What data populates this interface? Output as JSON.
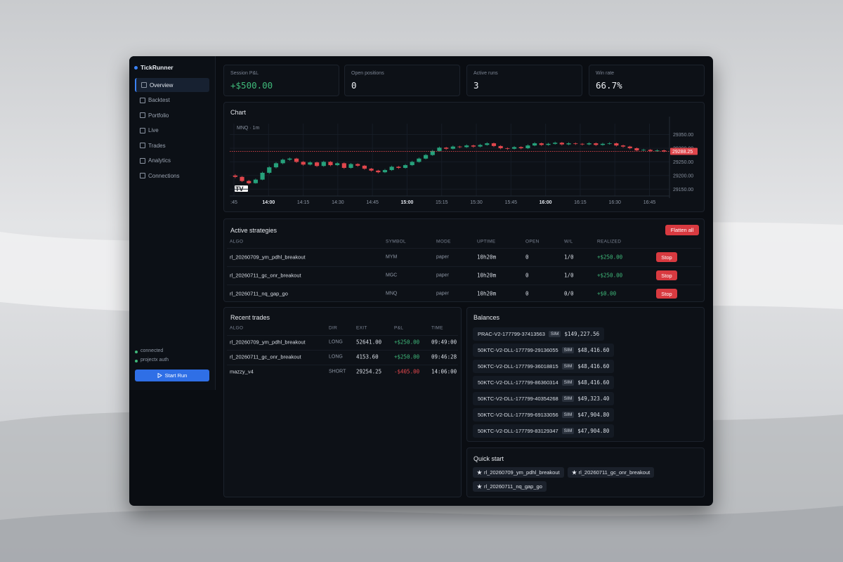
{
  "sidebar": {
    "brand": "TickRunner",
    "nav": [
      "Overview",
      "Backtest",
      "Portfolio",
      "Live",
      "Trades",
      "Analytics",
      "Connections"
    ],
    "status": [
      "connected",
      "projectx auth"
    ],
    "button": "Start Run"
  },
  "stats": [
    {
      "label": "Session P&L",
      "value": "+$500.00"
    },
    {
      "label": "Open positions",
      "value": "0"
    },
    {
      "label": "Active runs",
      "value": "3"
    },
    {
      "label": "Win rate",
      "value": "66.7%"
    }
  ],
  "chart": {
    "type": "candlestick",
    "title": "Chart",
    "label": "MNQ · 1m",
    "candles": [
      [
        29200,
        29205,
        29190,
        29195
      ],
      [
        29195,
        29198,
        29176,
        29180
      ],
      [
        29180,
        29184,
        29168,
        29172
      ],
      [
        29172,
        29189,
        29170,
        29185
      ],
      [
        29185,
        29214,
        29183,
        29210
      ],
      [
        29210,
        29234,
        29206,
        29230
      ],
      [
        29230,
        29249,
        29226,
        29245
      ],
      [
        29245,
        29262,
        29241,
        29258
      ],
      [
        29258,
        29266,
        29254,
        29262
      ],
      [
        29262,
        29265,
        29246,
        29250
      ],
      [
        29250,
        29253,
        29236,
        29240
      ],
      [
        29240,
        29252,
        29237,
        29248
      ],
      [
        29248,
        29251,
        29231,
        29235
      ],
      [
        29235,
        29254,
        29232,
        29250
      ],
      [
        29250,
        29253,
        29234,
        29238
      ],
      [
        29238,
        29249,
        29235,
        29245
      ],
      [
        29245,
        29248,
        29224,
        29228
      ],
      [
        29228,
        29246,
        29225,
        29242
      ],
      [
        29242,
        29245,
        29232,
        29236
      ],
      [
        29236,
        29239,
        29221,
        29225
      ],
      [
        29225,
        29228,
        29214,
        29218
      ],
      [
        29218,
        29221,
        29208,
        29212
      ],
      [
        29212,
        29224,
        29209,
        29220
      ],
      [
        29220,
        29236,
        29217,
        29232
      ],
      [
        29232,
        29235,
        29224,
        29228
      ],
      [
        29228,
        29242,
        29225,
        29238
      ],
      [
        29238,
        29254,
        29235,
        29250
      ],
      [
        29250,
        29266,
        29247,
        29262
      ],
      [
        29262,
        29279,
        29259,
        29275
      ],
      [
        29275,
        29294,
        29272,
        29290
      ],
      [
        29290,
        29306,
        29287,
        29302
      ],
      [
        29302,
        29305,
        29294,
        29298
      ],
      [
        29298,
        29310,
        29295,
        29306
      ],
      [
        29306,
        29309,
        29300,
        29304
      ],
      [
        29304,
        29314,
        29301,
        29310
      ],
      [
        29310,
        29313,
        29302,
        29306
      ],
      [
        29306,
        29316,
        29303,
        29312
      ],
      [
        29312,
        29322,
        29309,
        29318
      ],
      [
        29318,
        29321,
        29304,
        29308
      ],
      [
        29308,
        29311,
        29296,
        29300
      ],
      [
        29300,
        29303,
        29294,
        29298
      ],
      [
        29298,
        29308,
        29295,
        29304
      ],
      [
        29304,
        29307,
        29296,
        29300
      ],
      [
        29300,
        29314,
        29297,
        29310
      ],
      [
        29310,
        29322,
        29307,
        29318
      ],
      [
        29318,
        29321,
        29308,
        29312
      ],
      [
        29312,
        29320,
        29309,
        29316
      ],
      [
        29316,
        29324,
        29313,
        29320
      ],
      [
        29320,
        29323,
        29310,
        29314
      ],
      [
        29314,
        29322,
        29311,
        29318
      ],
      [
        29318,
        29321,
        29312,
        29316
      ],
      [
        29316,
        29319,
        29310,
        29314
      ],
      [
        29314,
        29322,
        29311,
        29318
      ],
      [
        29318,
        29321,
        29308,
        29312
      ],
      [
        29312,
        29320,
        29309,
        29316
      ],
      [
        29316,
        29322,
        29313,
        29318
      ],
      [
        29318,
        29321,
        29306,
        29310
      ],
      [
        29310,
        29313,
        29302,
        29306
      ],
      [
        29306,
        29309,
        29296,
        29300
      ],
      [
        29300,
        29303,
        29288,
        29292
      ],
      [
        29292,
        29298,
        29289,
        29294
      ],
      [
        29294,
        29297,
        29286,
        29290
      ],
      [
        29290,
        29296,
        29287,
        29292
      ],
      [
        29292,
        29295,
        29285,
        29288.25
      ]
    ],
    "ylim": [
      29125,
      29390
    ],
    "yticks": [
      {
        "value": 29150,
        "label": "29150.00"
      },
      {
        "value": 29200,
        "label": "29200.00"
      },
      {
        "value": 29250,
        "label": "29250.00"
      },
      {
        "value": 29300,
        "label": "29300.00"
      },
      {
        "value": 29350,
        "label": "29350.00"
      }
    ],
    "xticks": [
      ":45",
      "14:00",
      "14:15",
      "14:30",
      "14:45",
      "15:00",
      "15:15",
      "15:30",
      "15:45",
      "16:00",
      "16:15",
      "16:30",
      "16:45"
    ]
  },
  "strategies": {
    "title": "Active strategies",
    "button": "Flatten all",
    "action": "Stop",
    "columns": [
      "ALGO",
      "SYMBOL",
      "MODE",
      "UPTIME",
      "OPEN",
      "W/L",
      "REALIZED"
    ],
    "rows": [
      [
        "rl_20260709_ym_pdhl_breakout",
        "MYM",
        "paper",
        "10h20m",
        0,
        "1/0",
        "+$250.00"
      ],
      [
        "rl_20260711_gc_onr_breakout",
        "MGC",
        "paper",
        "10h20m",
        0,
        "1/0",
        "+$250.00"
      ],
      [
        "rl_20260711_nq_gap_go",
        "MNQ",
        "paper",
        "10h20m",
        0,
        "0/0",
        "+$0.00"
      ]
    ]
  },
  "trades": {
    "title": "Recent trades",
    "columns": [
      "ALGO",
      "DIR",
      "EXIT",
      "P&L",
      "TIME"
    ],
    "rows": [
      [
        "rl_20260709_ym_pdhl_breakout",
        "LONG",
        "52641.00",
        "+$250.00",
        "09:49:00"
      ],
      [
        "rl_20260711_gc_onr_breakout",
        "LONG",
        "4153.60",
        "+$250.00",
        "09:46:28"
      ],
      [
        "mazzy_v4",
        "SHORT",
        "29254.25",
        "-$405.00",
        "14:06:00"
      ]
    ]
  },
  "balances": {
    "title": "Balances",
    "rows": [
      [
        "PRAC-V2-177799-37413563",
        "SIM",
        "$149,227.56"
      ],
      [
        "50KTC-V2-DLL-177799-29136055",
        "SIM",
        "$48,416.60"
      ],
      [
        "50KTC-V2-DLL-177799-36018815",
        "SIM",
        "$48,416.60"
      ],
      [
        "50KTC-V2-DLL-177799-86360314",
        "SIM",
        "$48,416.60"
      ],
      [
        "50KTC-V2-DLL-177799-40354268",
        "SIM",
        "$49,323.40"
      ],
      [
        "50KTC-V2-DLL-177799-69133056",
        "SIM",
        "$47,904.80"
      ],
      [
        "50KTC-V2-DLL-177799-83129347",
        "SIM",
        "$47,904.80"
      ]
    ]
  },
  "quick_start": {
    "title": "Quick start",
    "items": [
      "rl_20260709_ym_pdhl_breakout",
      "rl_20260711_gc_onr_breakout",
      "rl_20260711_nq_gap_go"
    ]
  }
}
